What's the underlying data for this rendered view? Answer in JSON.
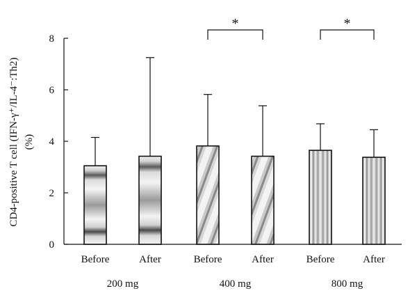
{
  "chart_data": {
    "type": "bar",
    "ylabel_line1": "CD4-positive T cell (IFN-γ⁺/IL-4⁻:Th2)",
    "ylabel_line2": "(%)",
    "ylim": [
      0,
      8
    ],
    "yticks": [
      "0",
      "2",
      "4",
      "6",
      "8"
    ],
    "grid": false,
    "groups": [
      {
        "label": "200 mg",
        "pattern": "horizontal-gradient"
      },
      {
        "label": "400 mg",
        "pattern": "diagonal-gradient"
      },
      {
        "label": "800 mg",
        "pattern": "vertical-stripes"
      }
    ],
    "bars": [
      {
        "group": 0,
        "label": "Before",
        "value": 3.05,
        "error_upper": 4.15
      },
      {
        "group": 0,
        "label": "After",
        "value": 3.42,
        "error_upper": 7.25
      },
      {
        "group": 1,
        "label": "Before",
        "value": 3.82,
        "error_upper": 5.82
      },
      {
        "group": 1,
        "label": "After",
        "value": 3.42,
        "error_upper": 5.38
      },
      {
        "group": 2,
        "label": "Before",
        "value": 3.65,
        "error_upper": 4.68
      },
      {
        "group": 2,
        "label": "After",
        "value": 3.38,
        "error_upper": 4.45
      }
    ],
    "significance": [
      {
        "group": 1,
        "marker": "*"
      },
      {
        "group": 2,
        "marker": "*"
      }
    ]
  },
  "colors": {
    "axis": "#111111",
    "bar_outline": "#111111",
    "fill_light": "#f4f4f4",
    "fill_mid": "#bdbdbd",
    "fill_dark": "#4a4a4a"
  }
}
